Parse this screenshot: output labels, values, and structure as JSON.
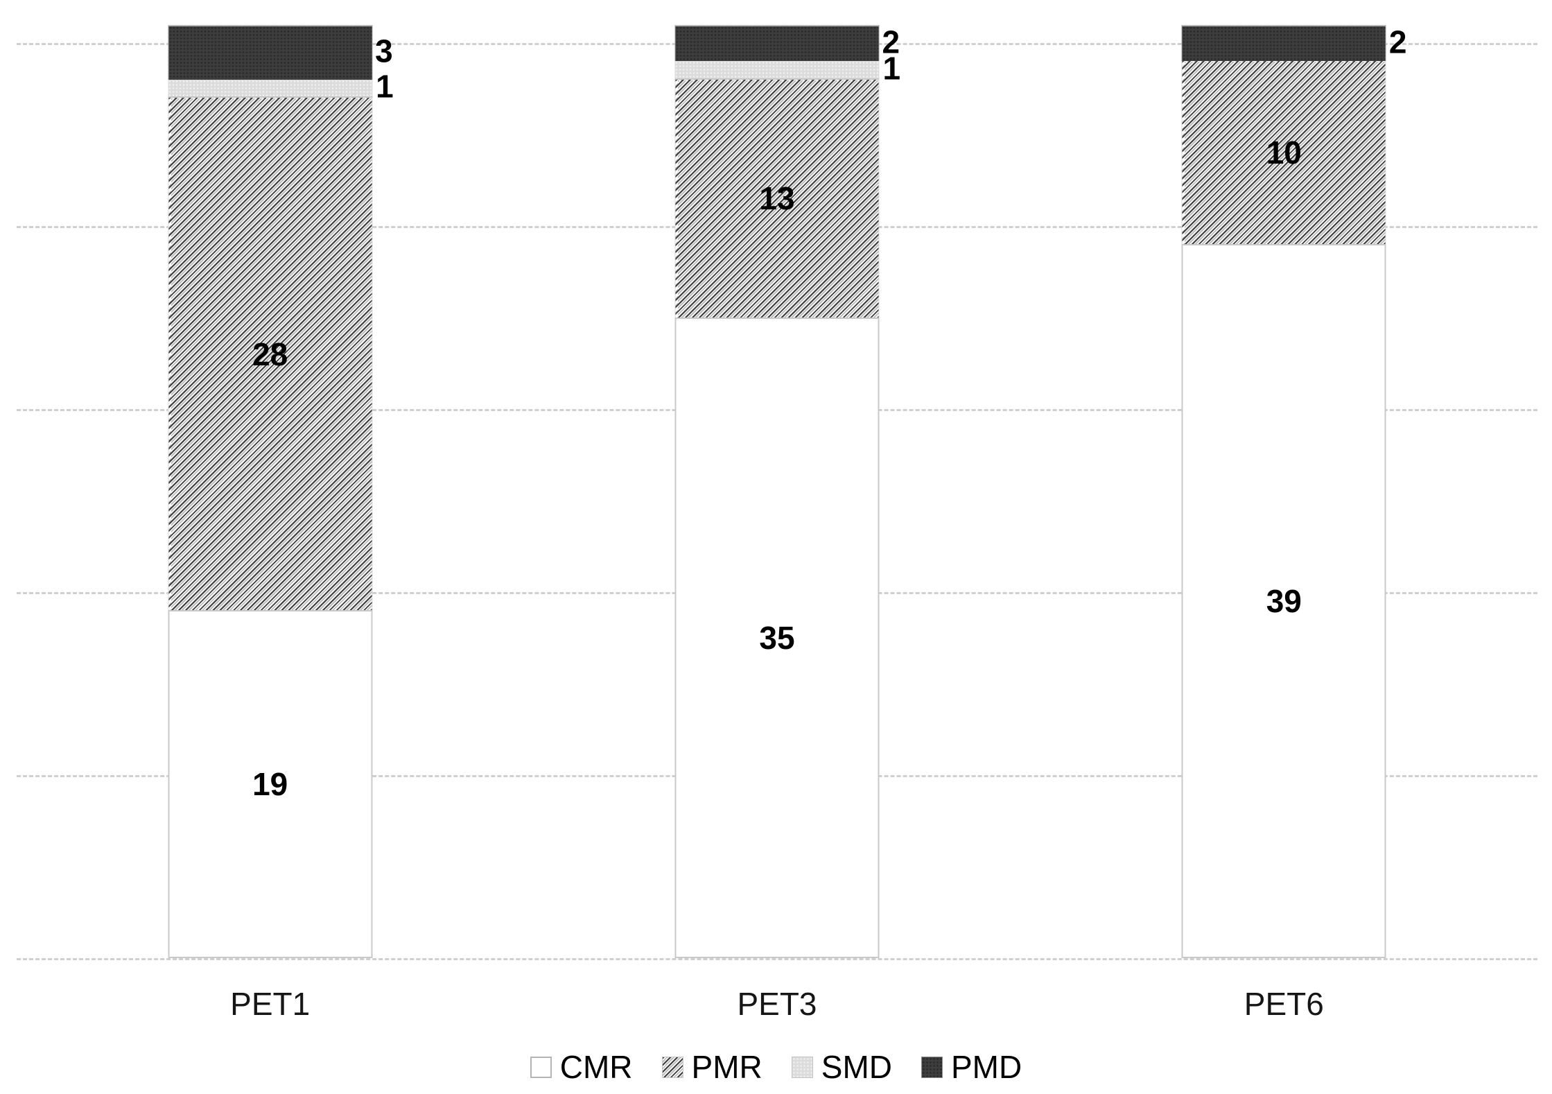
{
  "chart_data": {
    "type": "bar",
    "stacked": true,
    "title": "",
    "xlabel": "",
    "ylabel": "",
    "categories": [
      "PET1",
      "PET3",
      "PET6"
    ],
    "series": [
      {
        "name": "CMR",
        "values": [
          19,
          35,
          39
        ],
        "style": "white",
        "label_placement": "inside"
      },
      {
        "name": "PMR",
        "values": [
          28,
          13,
          10
        ],
        "style": "hatch",
        "label_placement": "inside"
      },
      {
        "name": "SMD",
        "values": [
          1,
          1,
          0
        ],
        "style": "lightgray",
        "label_placement": "outside"
      },
      {
        "name": "PMD",
        "values": [
          3,
          2,
          2
        ],
        "style": "darkgray",
        "label_placement": "outside"
      }
    ],
    "totals": [
      51,
      51,
      51
    ],
    "ylim": [
      0,
      51
    ],
    "y_axis_labels_visible": false,
    "gridlines": {
      "interval": 10,
      "max": 50,
      "style": "dashed",
      "color": "#cfcfcf"
    },
    "legend_position": "bottom",
    "colors": {
      "cmr_fill": "#ffffff",
      "pmr_hatch_line": "#3e3e3e",
      "smd_fill": "#dcdcdc",
      "pmd_fill": "#3d3d3d",
      "segment_border": "#c9c9c9",
      "data_label": "#000000",
      "category_label": "#161616"
    }
  }
}
